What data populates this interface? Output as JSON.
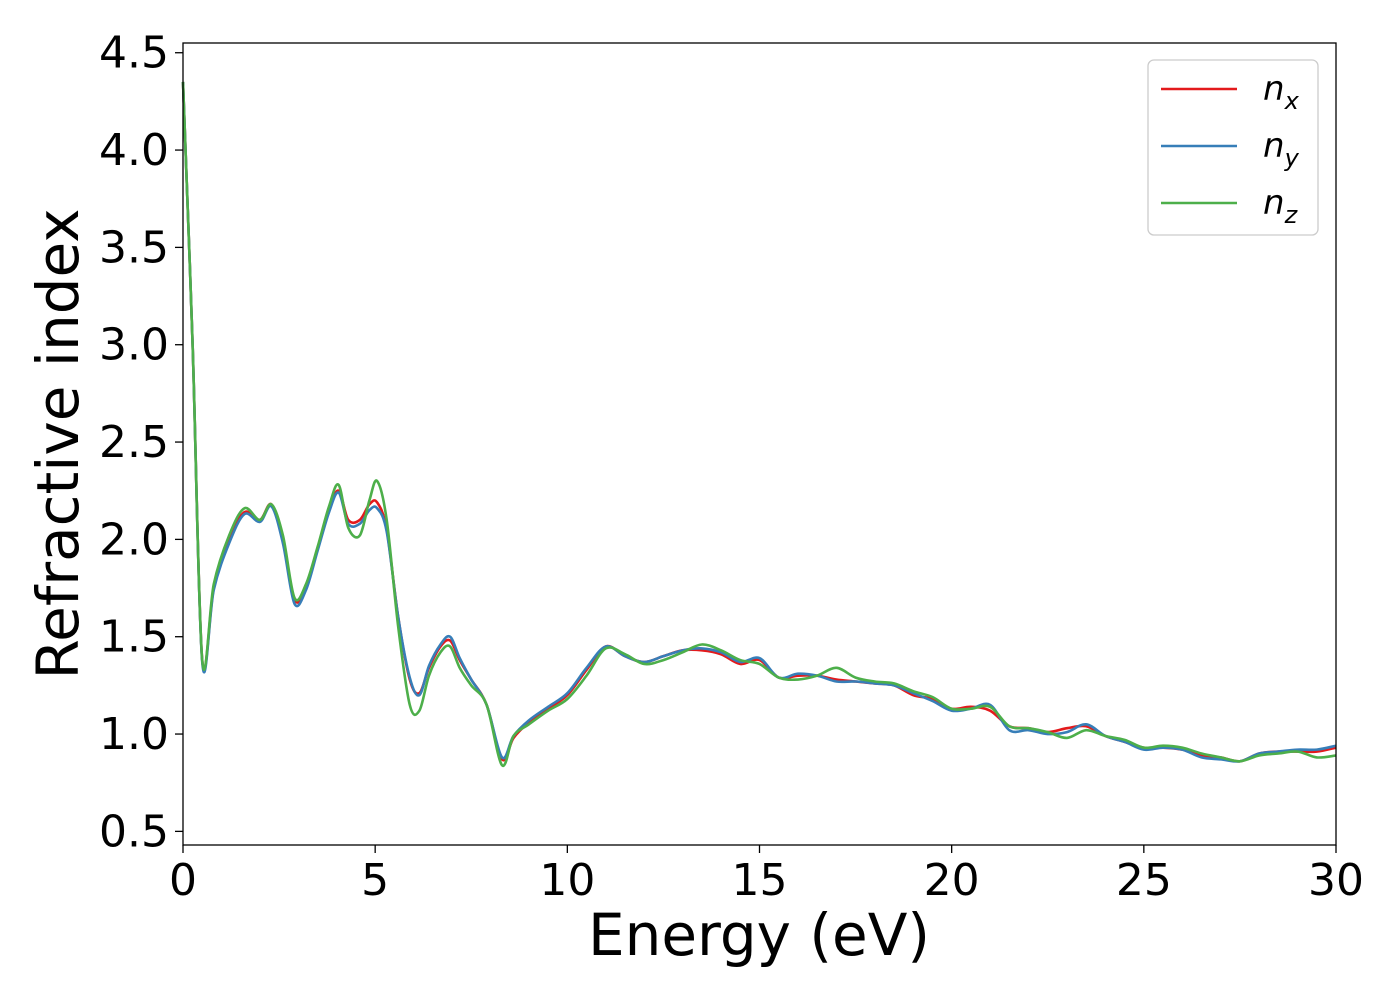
{
  "chart_data": {
    "type": "line",
    "xlabel": "Energy (eV)",
    "ylabel": "Refractive index",
    "xlim": [
      0,
      30
    ],
    "ylim": [
      0.43,
      4.55
    ],
    "xticks": [
      "0",
      "5",
      "10",
      "15",
      "20",
      "25",
      "30"
    ],
    "yticks": [
      "0.5",
      "1.0",
      "1.5",
      "2.0",
      "2.5",
      "3.0",
      "3.5",
      "4.0",
      "4.5"
    ],
    "grid": false,
    "legend_position": "top-right",
    "series": [
      {
        "name": "n",
        "subscript": "x",
        "color": "#e31a1c",
        "x": [
          0.0,
          0.25,
          0.5,
          0.8,
          1.2,
          1.6,
          2.0,
          2.3,
          2.6,
          2.9,
          3.2,
          3.5,
          3.8,
          4.05,
          4.3,
          4.6,
          4.85,
          5.05,
          5.3,
          5.6,
          5.9,
          6.15,
          6.4,
          6.7,
          6.95,
          7.2,
          7.5,
          7.9,
          8.3,
          8.6,
          9.0,
          9.5,
          10.0,
          10.5,
          11.0,
          11.5,
          12.0,
          12.5,
          13.0,
          13.5,
          14.0,
          14.5,
          15.0,
          15.5,
          16.0,
          16.5,
          17.0,
          17.5,
          18.0,
          18.5,
          19.0,
          19.5,
          20.0,
          20.5,
          21.0,
          21.5,
          22.0,
          22.5,
          23.0,
          23.5,
          24.0,
          24.5,
          25.0,
          25.5,
          26.0,
          26.5,
          27.0,
          27.5,
          28.0,
          28.5,
          29.0,
          29.5,
          30.0
        ],
        "y": [
          4.35,
          3.0,
          1.38,
          1.75,
          2.0,
          2.14,
          2.1,
          2.18,
          2.0,
          1.69,
          1.75,
          1.95,
          2.15,
          2.25,
          2.1,
          2.1,
          2.18,
          2.19,
          2.05,
          1.6,
          1.28,
          1.21,
          1.34,
          1.45,
          1.48,
          1.38,
          1.28,
          1.15,
          0.87,
          0.98,
          1.06,
          1.13,
          1.2,
          1.33,
          1.45,
          1.4,
          1.37,
          1.4,
          1.43,
          1.43,
          1.41,
          1.36,
          1.38,
          1.29,
          1.3,
          1.3,
          1.28,
          1.27,
          1.26,
          1.25,
          1.2,
          1.18,
          1.13,
          1.14,
          1.12,
          1.04,
          1.03,
          1.01,
          1.03,
          1.04,
          0.99,
          0.96,
          0.93,
          0.93,
          0.92,
          0.89,
          0.88,
          0.86,
          0.9,
          0.91,
          0.91,
          0.91,
          0.93
        ]
      },
      {
        "name": "n",
        "subscript": "y",
        "color": "#377eb8",
        "x": [
          0.0,
          0.25,
          0.5,
          0.8,
          1.2,
          1.6,
          2.0,
          2.3,
          2.6,
          2.9,
          3.2,
          3.5,
          3.8,
          4.05,
          4.3,
          4.6,
          4.85,
          5.05,
          5.3,
          5.6,
          5.9,
          6.15,
          6.4,
          6.7,
          6.95,
          7.2,
          7.5,
          7.9,
          8.3,
          8.6,
          9.0,
          9.5,
          10.0,
          10.5,
          11.0,
          11.5,
          12.0,
          12.5,
          13.0,
          13.5,
          14.0,
          14.5,
          15.0,
          15.5,
          16.0,
          16.5,
          17.0,
          17.5,
          18.0,
          18.5,
          19.0,
          19.5,
          20.0,
          20.5,
          21.0,
          21.5,
          22.0,
          22.5,
          23.0,
          23.5,
          24.0,
          24.5,
          25.0,
          25.5,
          26.0,
          26.5,
          27.0,
          27.5,
          28.0,
          28.5,
          29.0,
          29.5,
          30.0
        ],
        "y": [
          4.35,
          3.0,
          1.37,
          1.74,
          1.98,
          2.13,
          2.09,
          2.17,
          1.98,
          1.67,
          1.74,
          1.94,
          2.14,
          2.24,
          2.08,
          2.08,
          2.15,
          2.16,
          2.04,
          1.6,
          1.29,
          1.2,
          1.35,
          1.46,
          1.5,
          1.39,
          1.28,
          1.15,
          0.88,
          0.99,
          1.07,
          1.14,
          1.21,
          1.34,
          1.45,
          1.4,
          1.37,
          1.4,
          1.43,
          1.44,
          1.42,
          1.37,
          1.39,
          1.29,
          1.31,
          1.3,
          1.27,
          1.27,
          1.26,
          1.25,
          1.21,
          1.17,
          1.12,
          1.13,
          1.15,
          1.02,
          1.02,
          1.0,
          1.01,
          1.05,
          0.99,
          0.96,
          0.92,
          0.93,
          0.92,
          0.88,
          0.87,
          0.86,
          0.9,
          0.91,
          0.92,
          0.92,
          0.94
        ]
      },
      {
        "name": "n",
        "subscript": "z",
        "color": "#4daf4a",
        "x": [
          0.0,
          0.25,
          0.5,
          0.8,
          1.2,
          1.6,
          2.0,
          2.3,
          2.6,
          2.9,
          3.2,
          3.5,
          3.8,
          4.05,
          4.3,
          4.6,
          4.85,
          5.05,
          5.3,
          5.6,
          5.9,
          6.15,
          6.4,
          6.7,
          6.95,
          7.2,
          7.5,
          7.9,
          8.3,
          8.6,
          9.0,
          9.5,
          10.0,
          10.5,
          11.0,
          11.5,
          12.0,
          12.5,
          13.0,
          13.5,
          14.0,
          14.5,
          15.0,
          15.5,
          16.0,
          16.5,
          17.0,
          17.5,
          18.0,
          18.5,
          19.0,
          19.5,
          20.0,
          20.5,
          21.0,
          21.5,
          22.0,
          22.5,
          23.0,
          23.5,
          24.0,
          24.5,
          25.0,
          25.5,
          26.0,
          26.5,
          27.0,
          27.5,
          28.0,
          28.5,
          29.0,
          29.5,
          30.0
        ],
        "y": [
          4.35,
          3.0,
          1.38,
          1.77,
          2.02,
          2.16,
          2.1,
          2.18,
          2.02,
          1.7,
          1.77,
          1.96,
          2.17,
          2.28,
          2.06,
          2.02,
          2.2,
          2.3,
          2.1,
          1.55,
          1.15,
          1.12,
          1.3,
          1.42,
          1.45,
          1.34,
          1.25,
          1.15,
          0.84,
          0.99,
          1.05,
          1.12,
          1.18,
          1.3,
          1.44,
          1.41,
          1.36,
          1.38,
          1.42,
          1.46,
          1.43,
          1.38,
          1.36,
          1.29,
          1.28,
          1.3,
          1.34,
          1.29,
          1.27,
          1.26,
          1.22,
          1.19,
          1.13,
          1.13,
          1.14,
          1.04,
          1.03,
          1.01,
          0.98,
          1.02,
          0.99,
          0.97,
          0.93,
          0.94,
          0.93,
          0.9,
          0.88,
          0.86,
          0.89,
          0.9,
          0.91,
          0.88,
          0.89
        ]
      }
    ]
  }
}
